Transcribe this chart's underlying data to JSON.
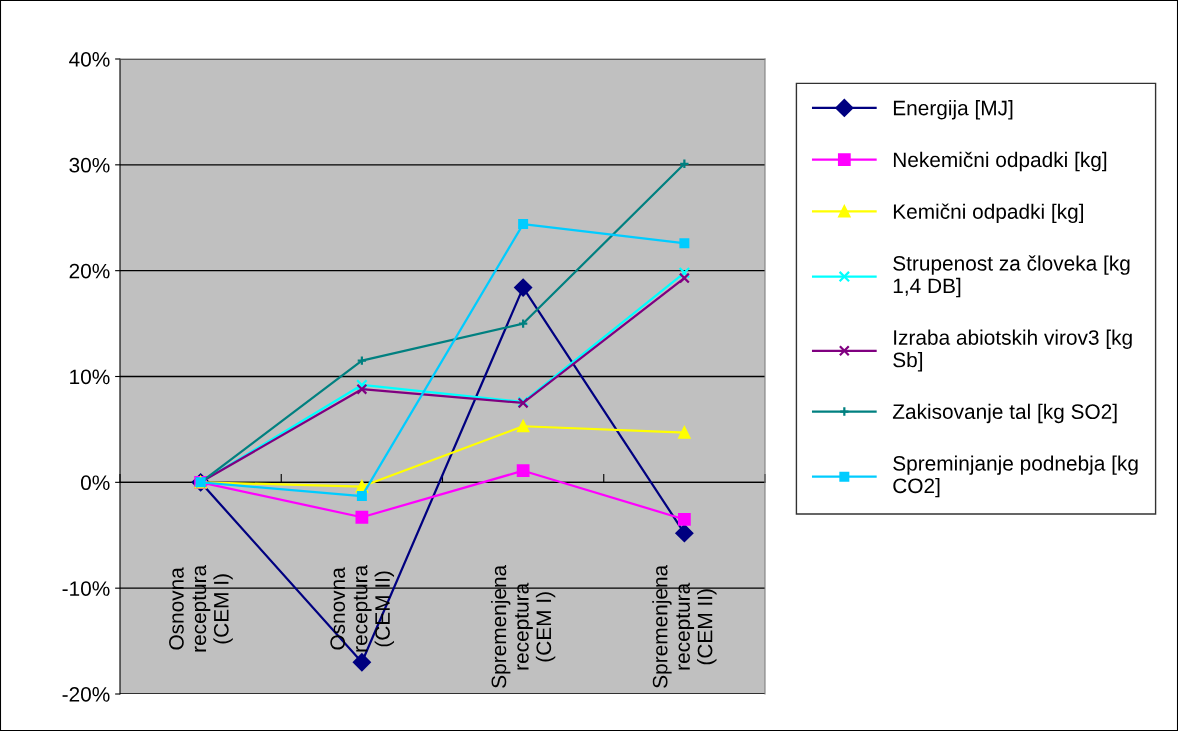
{
  "chart_data": {
    "type": "line",
    "categories": [
      "Osnovna\nreceptura\n(CEM I)",
      "Osnovna\nreceptura\n(CEM II)",
      "Spremenjena\nreceptura\n(CEM I)",
      "Spremenjena\nreceptura\n(CEM II)"
    ],
    "series": [
      {
        "name": "Energija [MJ]",
        "color": "#000080",
        "marker": "diamond",
        "values": [
          0,
          -17.0,
          18.4,
          -4.8
        ]
      },
      {
        "name": "Nekemični odpadki [kg]",
        "color": "#ff00ff",
        "marker": "square",
        "values": [
          0,
          -3.3,
          1.1,
          -3.5
        ]
      },
      {
        "name": "Kemični odpadki [kg]",
        "color": "#ffff00",
        "marker": "triangle",
        "values": [
          0,
          -0.4,
          5.3,
          4.7
        ]
      },
      {
        "name": "Strupenost za človeka [kg\n1,4 DB]",
        "color": "#00ffff",
        "marker": "cross",
        "values": [
          0,
          9.2,
          7.6,
          19.8
        ]
      },
      {
        "name": "Izraba abiotskih virov3 [kg\nSb]",
        "color": "#800080",
        "marker": "cross",
        "values": [
          0,
          8.8,
          7.5,
          19.3
        ]
      },
      {
        "name": "Zakisovanje tal [kg SO2]",
        "color": "#008080",
        "marker": "plus",
        "values": [
          0,
          11.5,
          15.0,
          30.1
        ]
      },
      {
        "name": "Spreminjanje podnebja [kg\nCO2]",
        "color": "#00ccff",
        "marker": "square",
        "values": [
          0,
          -1.3,
          24.4,
          22.6
        ]
      }
    ],
    "ylim": [
      -20,
      40
    ],
    "yticks": [
      {
        "value": -20,
        "label": "-20%"
      },
      {
        "value": -10,
        "label": "-10%"
      },
      {
        "value": 0,
        "label": "0%"
      },
      {
        "value": 10,
        "label": "10%"
      },
      {
        "value": 20,
        "label": "20%"
      },
      {
        "value": 30,
        "label": "30%"
      },
      {
        "value": 40,
        "label": "40%"
      }
    ],
    "grid": "y",
    "legend": "right",
    "line_style": "solid"
  }
}
